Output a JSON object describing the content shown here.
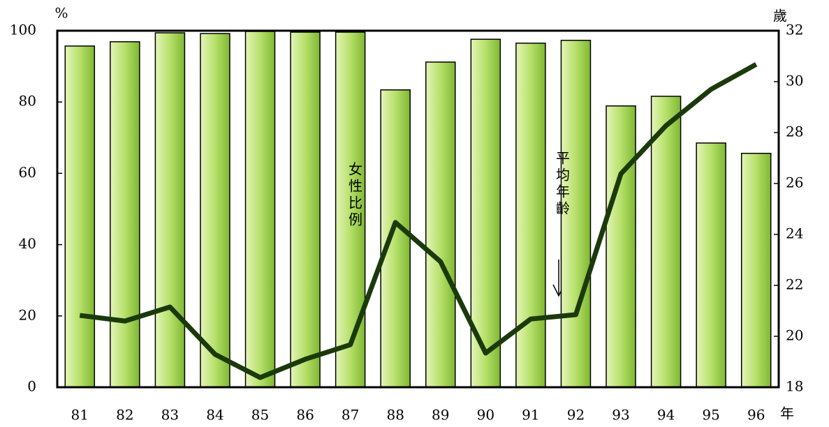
{
  "chart_data": {
    "type": "bar_line",
    "y_unit": "%",
    "y2_unit": "歲",
    "x_unit": "年",
    "categories": [
      "81",
      "82",
      "83",
      "84",
      "85",
      "86",
      "87",
      "88",
      "89",
      "90",
      "91",
      "92",
      "93",
      "94",
      "95",
      "96"
    ],
    "series": [
      {
        "name": "女性比例",
        "type": "bar",
        "color": "#8cc63f",
        "values": [
          95.7,
          96.9,
          99.4,
          99.2,
          99.8,
          99.6,
          99.6,
          83.4,
          91.2,
          97.6,
          96.5,
          97.3,
          78.9,
          81.6,
          68.5,
          65.6
        ]
      },
      {
        "name": "平均年齡",
        "type": "line",
        "axis": "y2",
        "color": "#1b3a0c",
        "values": [
          20.82,
          20.6,
          21.15,
          19.29,
          18.38,
          19.1,
          19.67,
          24.47,
          22.93,
          19.34,
          20.68,
          20.85,
          26.38,
          28.27,
          29.7,
          30.68
        ]
      }
    ],
    "ylim": [
      0,
      100
    ],
    "yticks": [
      0,
      20,
      40,
      60,
      80,
      100
    ],
    "y2lim": [
      18,
      32
    ],
    "y2ticks": [
      18,
      20,
      22,
      24,
      26,
      28,
      30,
      32
    ]
  }
}
